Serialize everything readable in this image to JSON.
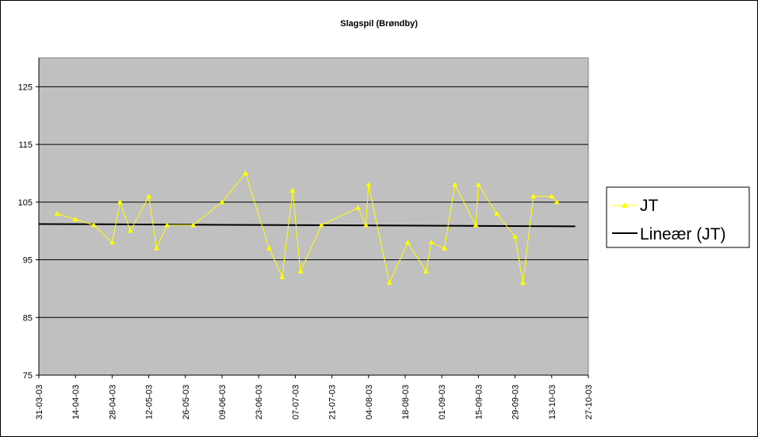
{
  "chart_data": {
    "type": "line",
    "title": "Slagspil (Brøndby)",
    "xlabel": "",
    "ylabel": "",
    "ylim": [
      75,
      130
    ],
    "yticks": [
      75,
      85,
      95,
      105,
      115,
      125
    ],
    "x_tick_labels": [
      "31-03-03",
      "14-04-03",
      "28-04-03",
      "12-05-03",
      "26-05-03",
      "09-06-03",
      "23-06-03",
      "07-07-03",
      "21-07-03",
      "04-08-03",
      "18-08-03",
      "01-09-03",
      "15-09-03",
      "29-09-03",
      "13-10-03",
      "27-10-03"
    ],
    "grid": "horizontal",
    "plot_background": "#c0c0c0",
    "legend_position": "right",
    "series": [
      {
        "name": "JT",
        "color": "#ffff00",
        "marker": "triangle",
        "x": [
          "2003-04-07",
          "2003-04-14",
          "2003-04-21",
          "2003-04-28",
          "2003-05-01",
          "2003-05-05",
          "2003-05-12",
          "2003-05-15",
          "2003-05-19",
          "2003-05-29",
          "2003-06-09",
          "2003-06-18",
          "2003-06-27",
          "2003-07-02",
          "2003-07-06",
          "2003-07-09",
          "2003-07-17",
          "2003-07-31",
          "2003-08-03",
          "2003-08-04",
          "2003-08-12",
          "2003-08-19",
          "2003-08-26",
          "2003-08-28",
          "2003-09-02",
          "2003-09-06",
          "2003-09-14",
          "2003-09-15",
          "2003-09-22",
          "2003-09-29",
          "2003-10-02",
          "2003-10-06",
          "2003-10-13",
          "2003-10-15"
        ],
        "y": [
          103,
          102,
          101,
          98,
          105,
          100,
          106,
          97,
          101,
          101,
          105,
          110,
          97,
          92,
          107,
          93,
          101,
          104,
          101,
          108,
          91,
          98,
          93,
          98,
          97,
          108,
          101,
          108,
          103,
          99,
          91,
          106,
          106,
          105
        ]
      },
      {
        "name": "Lineær (JT)",
        "color": "#000000",
        "trendline_of": "JT",
        "x": [
          "2003-03-31",
          "2003-10-22"
        ],
        "y": [
          101.2,
          100.8
        ]
      }
    ]
  }
}
